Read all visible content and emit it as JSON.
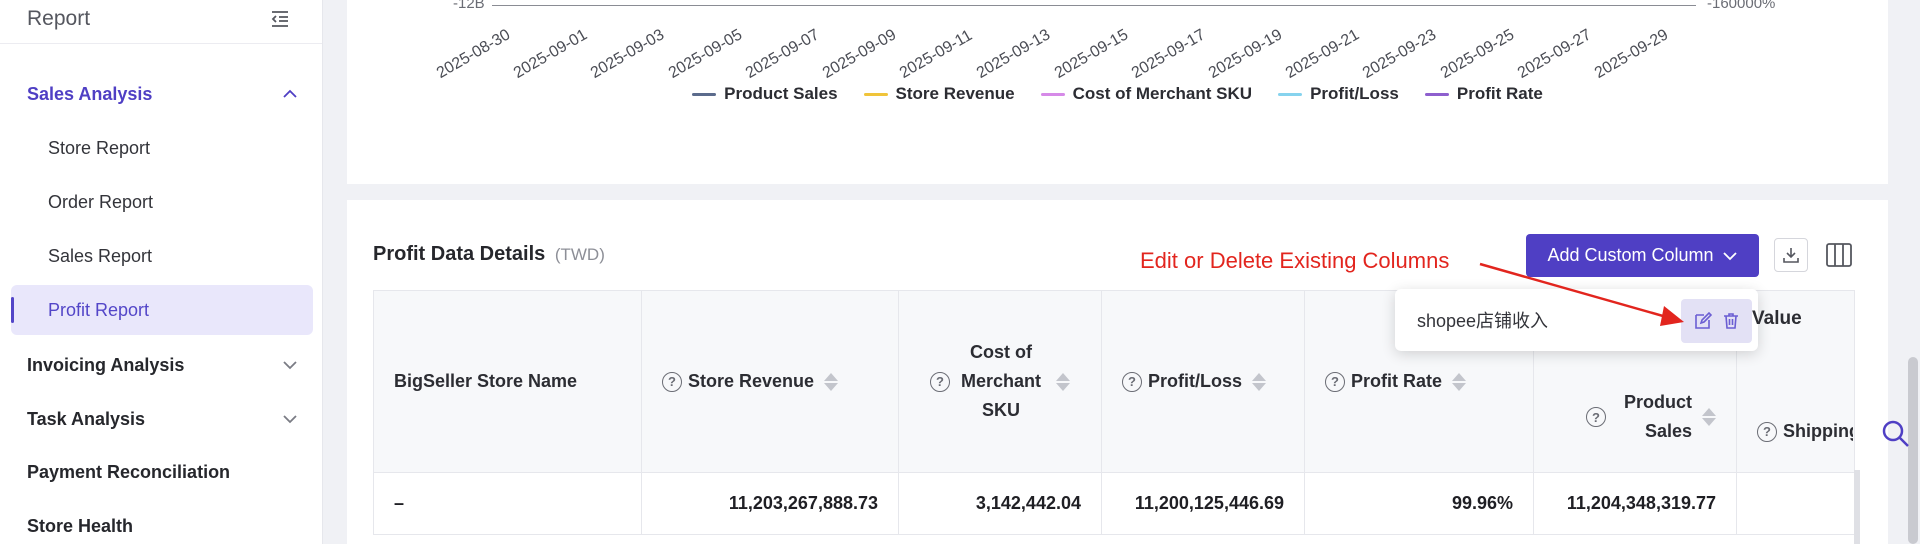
{
  "sidebar": {
    "title": "Report",
    "groups": [
      {
        "label": "Sales Analysis",
        "expanded": true
      },
      {
        "label": "Invoicing Analysis",
        "expanded": false
      },
      {
        "label": "Task Analysis",
        "expanded": false
      },
      {
        "label": "Payment Reconciliation"
      },
      {
        "label": "Store Health"
      }
    ],
    "items": [
      {
        "label": "Store Report"
      },
      {
        "label": "Order Report"
      },
      {
        "label": "Sales Report"
      },
      {
        "label": "Profit Report",
        "selected": true
      }
    ]
  },
  "chart": {
    "y_left_min": "-12B",
    "y_right_min": "-160000%",
    "x_ticks": [
      "2025-08-30",
      "2025-09-01",
      "2025-09-03",
      "2025-09-05",
      "2025-09-07",
      "2025-09-09",
      "2025-09-11",
      "2025-09-13",
      "2025-09-15",
      "2025-09-17",
      "2025-09-19",
      "2025-09-21",
      "2025-09-23",
      "2025-09-25",
      "2025-09-27",
      "2025-09-29"
    ],
    "legend": [
      {
        "label": "Product Sales",
        "color": "#5b6b8c"
      },
      {
        "label": "Store Revenue",
        "color": "#f0c43a"
      },
      {
        "label": "Cost of Merchant SKU",
        "color": "#d68ae8"
      },
      {
        "label": "Profit/Loss",
        "color": "#86d3ee"
      },
      {
        "label": "Profit Rate",
        "color": "#8e5fce"
      }
    ]
  },
  "profit_section": {
    "title": "Profit Data Details",
    "unit": "(TWD)",
    "add_button": "Add Custom Column",
    "annotation": "Edit or Delete Existing Columns",
    "popover_item": "shopee店铺收入",
    "partial_header": "Value",
    "columns": [
      {
        "label": "BigSeller Store Name"
      },
      {
        "label": "Store Revenue"
      },
      {
        "label": "Cost of Merchant SKU"
      },
      {
        "label": "Profit/Loss"
      },
      {
        "label": "Profit Rate"
      },
      {
        "label": "Product Sales"
      },
      {
        "label": "Shipping Paid By"
      }
    ],
    "rows": [
      [
        "–",
        "11,203,267,888.73",
        "3,142,442.04",
        "11,200,125,446.69",
        "99.96%",
        "11,204,348,319.77",
        ""
      ]
    ]
  },
  "colors": {
    "accent": "#4f3fc4",
    "annotation": "#e2251e"
  }
}
